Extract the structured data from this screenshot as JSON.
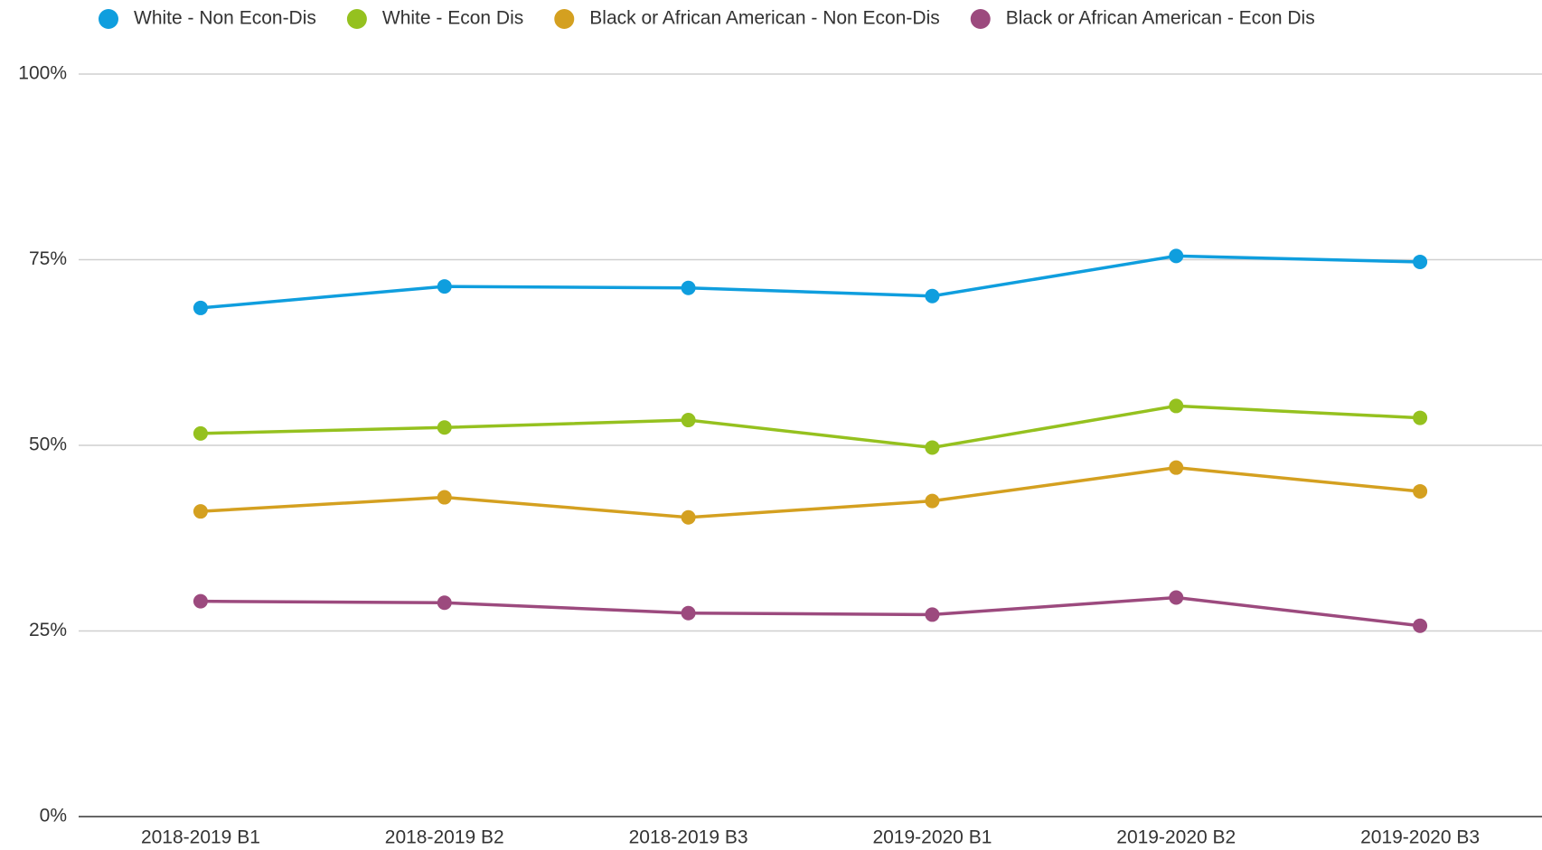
{
  "chart_data": {
    "type": "line",
    "categories": [
      "2018-2019 B1",
      "2018-2019 B2",
      "2018-2019 B3",
      "2019-2020 B1",
      "2019-2020 B2",
      "2019-2020 B3"
    ],
    "series": [
      {
        "name": "White - Non Econ-Dis",
        "color": "#0f9ede",
        "values": [
          68.5,
          71.4,
          71.2,
          70.1,
          75.5,
          74.7
        ]
      },
      {
        "name": "White - Econ Dis",
        "color": "#95c11f",
        "values": [
          51.6,
          52.4,
          53.4,
          49.7,
          55.3,
          53.7
        ]
      },
      {
        "name": "Black or African American - Non Econ-Dis",
        "color": "#d4a020",
        "values": [
          41.1,
          43.0,
          40.3,
          42.5,
          47.0,
          43.8
        ]
      },
      {
        "name": "Black or African American - Econ Dis",
        "color": "#9c4a7e",
        "values": [
          29.0,
          28.8,
          27.4,
          27.2,
          29.5,
          25.7
        ]
      }
    ],
    "ylim": [
      0,
      100
    ],
    "yticks": [
      {
        "value": 0,
        "label": "0%"
      },
      {
        "value": 25,
        "label": "25%"
      },
      {
        "value": 50,
        "label": "50%"
      },
      {
        "value": 75,
        "label": "75%"
      },
      {
        "value": 100,
        "label": "100%"
      }
    ],
    "grid": true,
    "legend": "top"
  }
}
